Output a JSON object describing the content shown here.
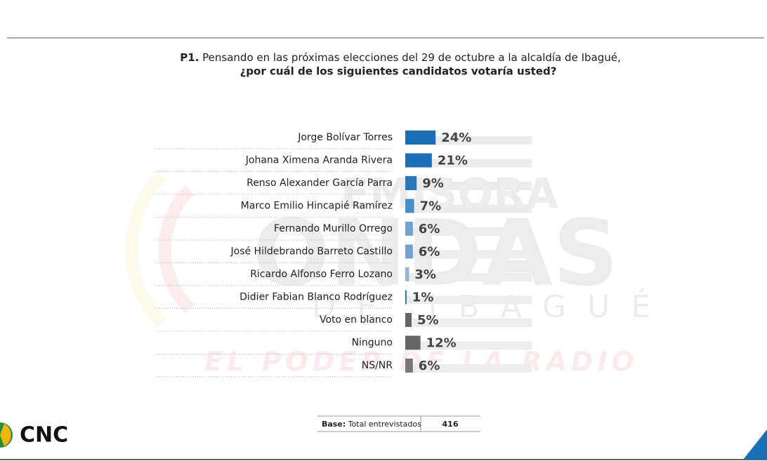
{
  "chart_data": {
    "type": "bar",
    "orientation": "horizontal",
    "question_number": "P1.",
    "title": "Pensando en las próximas elecciones del 29 de octubre a la alcaldía de Ibagué,",
    "subtitle": "¿por cuál de los siguientes candidatos votaría usted?",
    "categories": [
      "Jorge Bolívar Torres",
      "Johana Ximena Aranda Rivera",
      "Renso Alexander García Parra",
      "Marco Emilio Hincapié Ramírez",
      "Fernando Murillo Orrego",
      "José Hildebrando Barreto Castillo",
      "Ricardo Alfonso Ferro Lozano",
      "Didier Fabian Blanco Rodríguez",
      "Voto en blanco",
      "Ninguno",
      "NS/NR"
    ],
    "values": [
      24,
      21,
      9,
      7,
      6,
      6,
      3,
      1,
      5,
      12,
      6
    ],
    "value_labels": [
      "24%",
      "21%",
      "9%",
      "7%",
      "6%",
      "6%",
      "3%",
      "1%",
      "5%",
      "12%",
      "6%"
    ],
    "colors": [
      "#1c6fb5",
      "#1c6fb5",
      "#2a78ba",
      "#4a8cc6",
      "#6ea3d1",
      "#6ea3d1",
      "#8fb8dc",
      "#1c6fb5",
      "#666666",
      "#666666",
      "#777777"
    ],
    "xlim": [
      0,
      100
    ],
    "base": {
      "label": "Base:",
      "text": "Total entrevistados",
      "value": "416"
    }
  },
  "watermark": [
    "EMISORA",
    "ONDAS",
    "DE IBAGUÉ",
    "EL PODER DE LA RADIO"
  ],
  "logo": "CNC"
}
